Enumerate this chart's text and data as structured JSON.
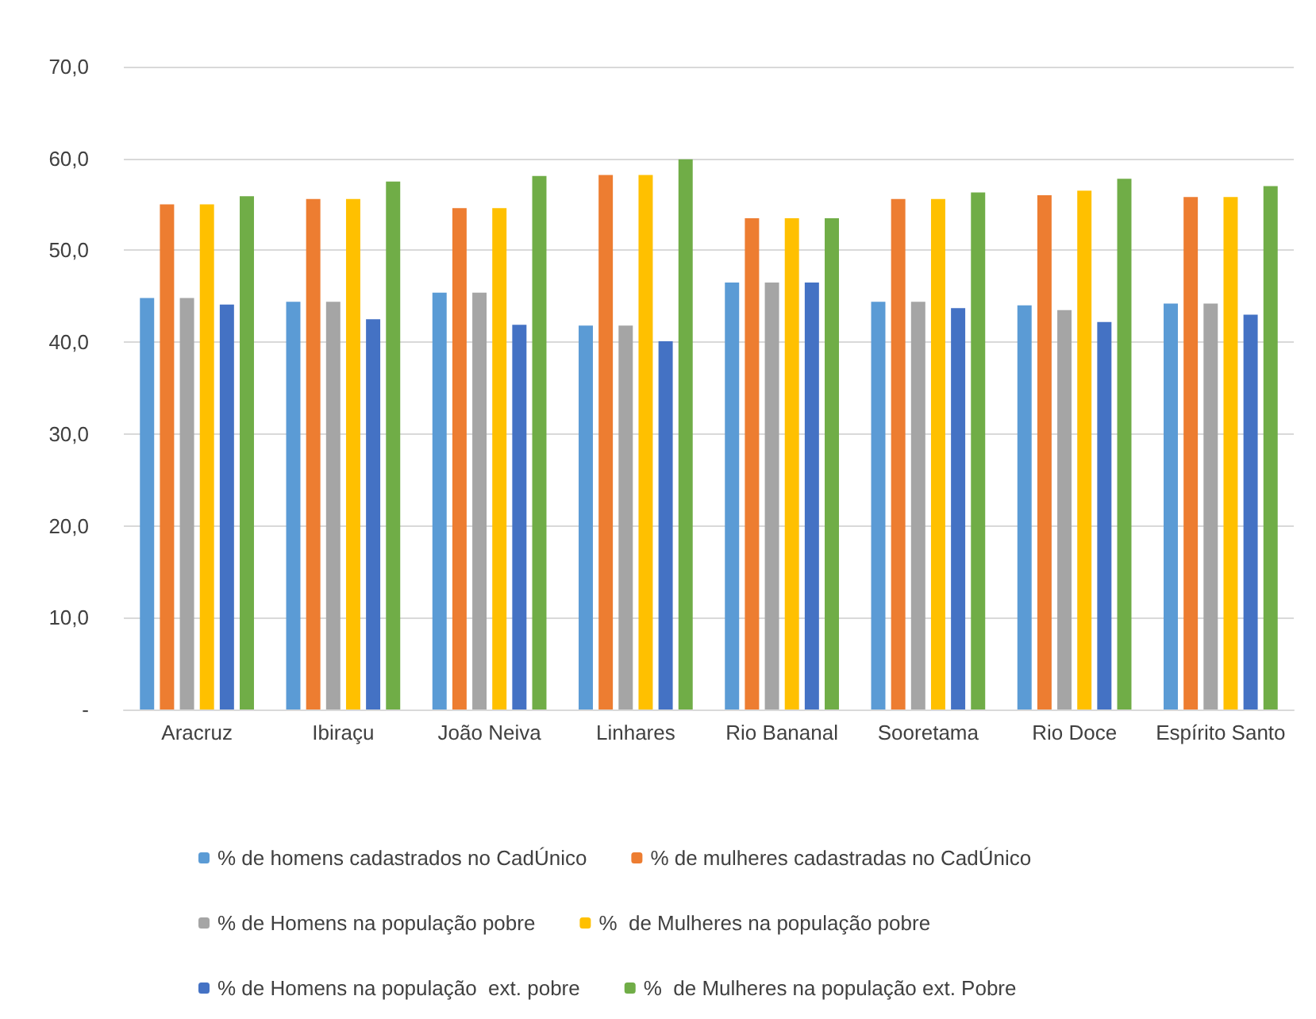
{
  "chart_data": {
    "type": "bar",
    "categories": [
      "Aracruz",
      "Ibiraçu",
      "João Neiva",
      "Linhares",
      "Rio Bananal",
      "Sooretama",
      "Rio Doce",
      "Espírito Santo"
    ],
    "series": [
      {
        "name": "% de homens cadastrados no CadÚnico",
        "color": "#5b9bd5",
        "values": [
          44.8,
          44.4,
          45.4,
          41.8,
          46.5,
          44.4,
          44.0,
          44.2
        ]
      },
      {
        "name": "% de mulheres cadastradas no CadÚnico",
        "color": "#ed7d31",
        "values": [
          55.0,
          55.6,
          54.6,
          58.2,
          53.5,
          55.6,
          56.0,
          55.8
        ]
      },
      {
        "name": "% de Homens na população pobre",
        "color": "#a5a5a5",
        "values": [
          44.8,
          44.4,
          45.4,
          41.8,
          46.5,
          44.4,
          43.5,
          44.2
        ]
      },
      {
        "name": "%  de Mulheres na população pobre",
        "color": "#ffc000",
        "values": [
          55.0,
          55.6,
          54.6,
          58.2,
          53.5,
          55.6,
          56.5,
          55.8
        ]
      },
      {
        "name": "% de Homens na população  ext. pobre",
        "color": "#4472c4",
        "values": [
          44.1,
          42.5,
          41.9,
          40.1,
          46.5,
          43.7,
          42.2,
          43.0
        ]
      },
      {
        "name": "%  de Mulheres na população ext. Pobre",
        "color": "#70ad47",
        "values": [
          55.9,
          57.5,
          58.1,
          59.9,
          53.5,
          56.3,
          57.8,
          57.0
        ]
      }
    ],
    "ylim": [
      0,
      70
    ],
    "yticks": [
      {
        "value": 0,
        "label": "-"
      },
      {
        "value": 10,
        "label": "10,0"
      },
      {
        "value": 20,
        "label": "20,0"
      },
      {
        "value": 30,
        "label": "30,0"
      },
      {
        "value": 40,
        "label": "40,0"
      },
      {
        "value": 50,
        "label": "50,0"
      },
      {
        "value": 60,
        "label": "60,0"
      },
      {
        "value": 70,
        "label": "70,0"
      }
    ],
    "grid": "y",
    "legend": "bottom"
  }
}
